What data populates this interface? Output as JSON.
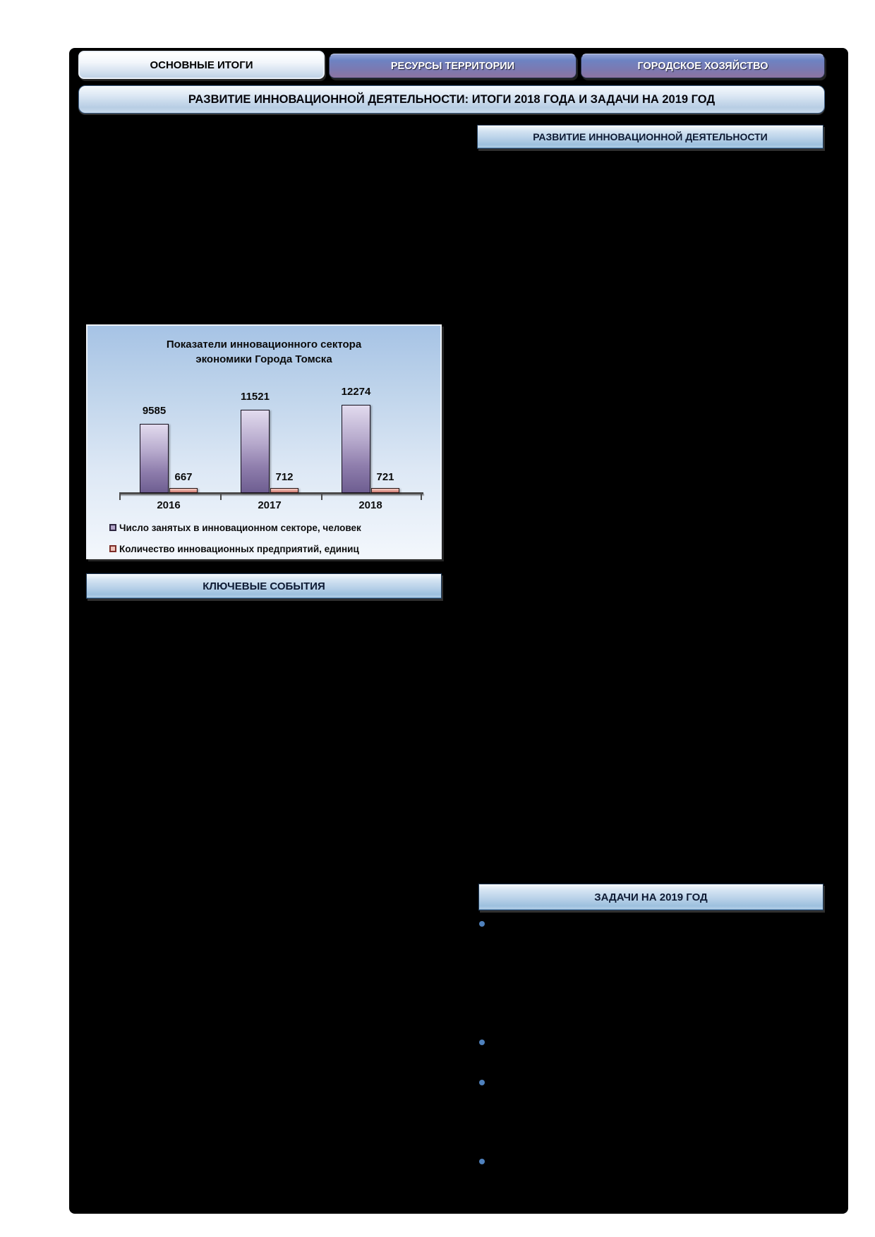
{
  "tabs": [
    {
      "label": "ОСНОВНЫЕ ИТОГИ",
      "active": true
    },
    {
      "label": "РЕСУРСЫ ТЕРРИТОРИИ",
      "active": false
    },
    {
      "label": "ГОРОДСКОЕ ХОЗЯЙСТВО",
      "active": false
    }
  ],
  "title_bar": "РАЗВИТИЕ ИННОВАЦИОННОЙ ДЕЯТЕЛЬНОСТИ: ИТОГИ 2018 ГОДА И ЗАДАЧИ НА 2019 ГОД",
  "section_headers": {
    "innovation": "РАЗВИТИЕ ИННОВАЦИОННОЙ ДЕЯТЕЛЬНОСТИ",
    "key_events": "КЛЮЧЕВЫЕ СОБЫТИЯ",
    "tasks_2019": "ЗАДАЧИ НА 2019 ГОД"
  },
  "chart_data": {
    "type": "bar",
    "title": "Показатели инновационного сектора экономики Города Томска",
    "title_lines": [
      "Показатели инновационного сектора",
      "экономики Города Томска"
    ],
    "categories": [
      "2016",
      "2017",
      "2018"
    ],
    "series": [
      {
        "name": "Число занятых в инновационном секторе, человек",
        "values": [
          9585,
          11521,
          12274
        ],
        "color": "#8c7aa8"
      },
      {
        "name": "Количество инновационных предприятий, единиц",
        "values": [
          667,
          712,
          721
        ],
        "color": "#e2988f"
      }
    ],
    "ylim": [
      0,
      13000
    ],
    "grid": false,
    "legend_position": "bottom",
    "data_labels": true,
    "xlabel": "",
    "ylabel": ""
  },
  "bullets": {
    "count": 4,
    "color": "#4f81bd"
  },
  "colors": {
    "page_background": "#ffffff",
    "content_background": "#000000",
    "header_gradient_top": "#d3e3f2",
    "header_gradient_bottom": "#9cc0de",
    "inactive_tab_top": "#6d83c3",
    "inactive_tab_bottom": "#8d74a1",
    "bar_employment": "#8c7aa8",
    "bar_enterprises": "#e2988f",
    "bullet": "#4f81bd"
  }
}
